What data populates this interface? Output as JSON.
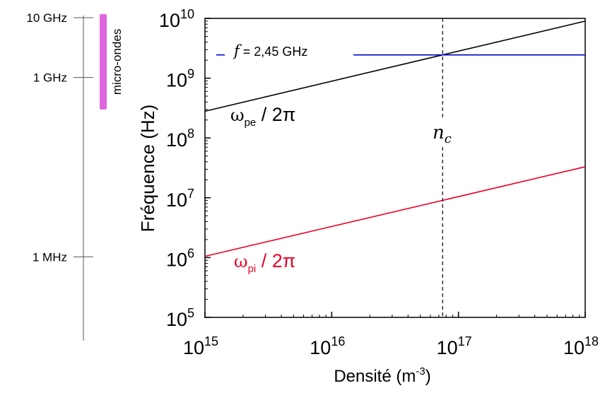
{
  "chart_data": {
    "type": "line",
    "xlabel": "Densité (m",
    "xlabel_exp": "-3",
    "xlabel_close": ")",
    "ylabel": "Fréquence (Hz)",
    "x_scale": "log",
    "y_scale": "log",
    "xlim": [
      1000000000000000.0,
      1e+18
    ],
    "ylim": [
      100000.0,
      10000000000.0
    ],
    "x_ticks": [
      {
        "value": 1000000000000000.0,
        "base": "10",
        "exp": "15"
      },
      {
        "value": 1e+16,
        "base": "10",
        "exp": "16"
      },
      {
        "value": 1e+17,
        "base": "10",
        "exp": "17"
      },
      {
        "value": 1e+18,
        "base": "10",
        "exp": "18"
      }
    ],
    "y_ticks": [
      {
        "value": 100000.0,
        "base": "10",
        "exp": "5"
      },
      {
        "value": 1000000.0,
        "base": "10",
        "exp": "6"
      },
      {
        "value": 10000000.0,
        "base": "10",
        "exp": "7"
      },
      {
        "value": 100000000.0,
        "base": "10",
        "exp": "8"
      },
      {
        "value": 1000000000.0,
        "base": "10",
        "exp": "9"
      },
      {
        "value": 10000000000.0,
        "base": "10",
        "exp": "10"
      }
    ],
    "series": [
      {
        "key": "ope",
        "sym": "ω",
        "sub": "pe",
        "rest": " / 2π",
        "color": "#000000",
        "x": [
          1000000000000000.0,
          1e+18
        ],
        "y": [
          280000000.0,
          9000000000.0
        ]
      },
      {
        "key": "opi",
        "sym": "ω",
        "sub": "pi",
        "rest": " / 2π",
        "color": "#e8002a",
        "x": [
          1000000000000000.0,
          1e+18
        ],
        "y": [
          1050000.0,
          33000000.0
        ]
      }
    ],
    "hline": {
      "y": 2450000000.0,
      "color": "#0000cc",
      "label_f": "f",
      "label_rest": " = 2,45 GHz"
    },
    "vline": {
      "x": 7.5e+16,
      "label_n": "n",
      "label_sub": "c"
    },
    "side_scale": {
      "ticks": [
        {
          "label": "10 GHz",
          "value": 10000000000.0
        },
        {
          "label": "1 GHz",
          "value": 1000000000.0
        },
        {
          "label": "1 MHz",
          "value": 1000000.0
        }
      ],
      "band": {
        "label": "micro-ondes",
        "from": 300000000.0,
        "to": 10000000000.0,
        "color": "#e066e0"
      }
    },
    "grid": false
  }
}
